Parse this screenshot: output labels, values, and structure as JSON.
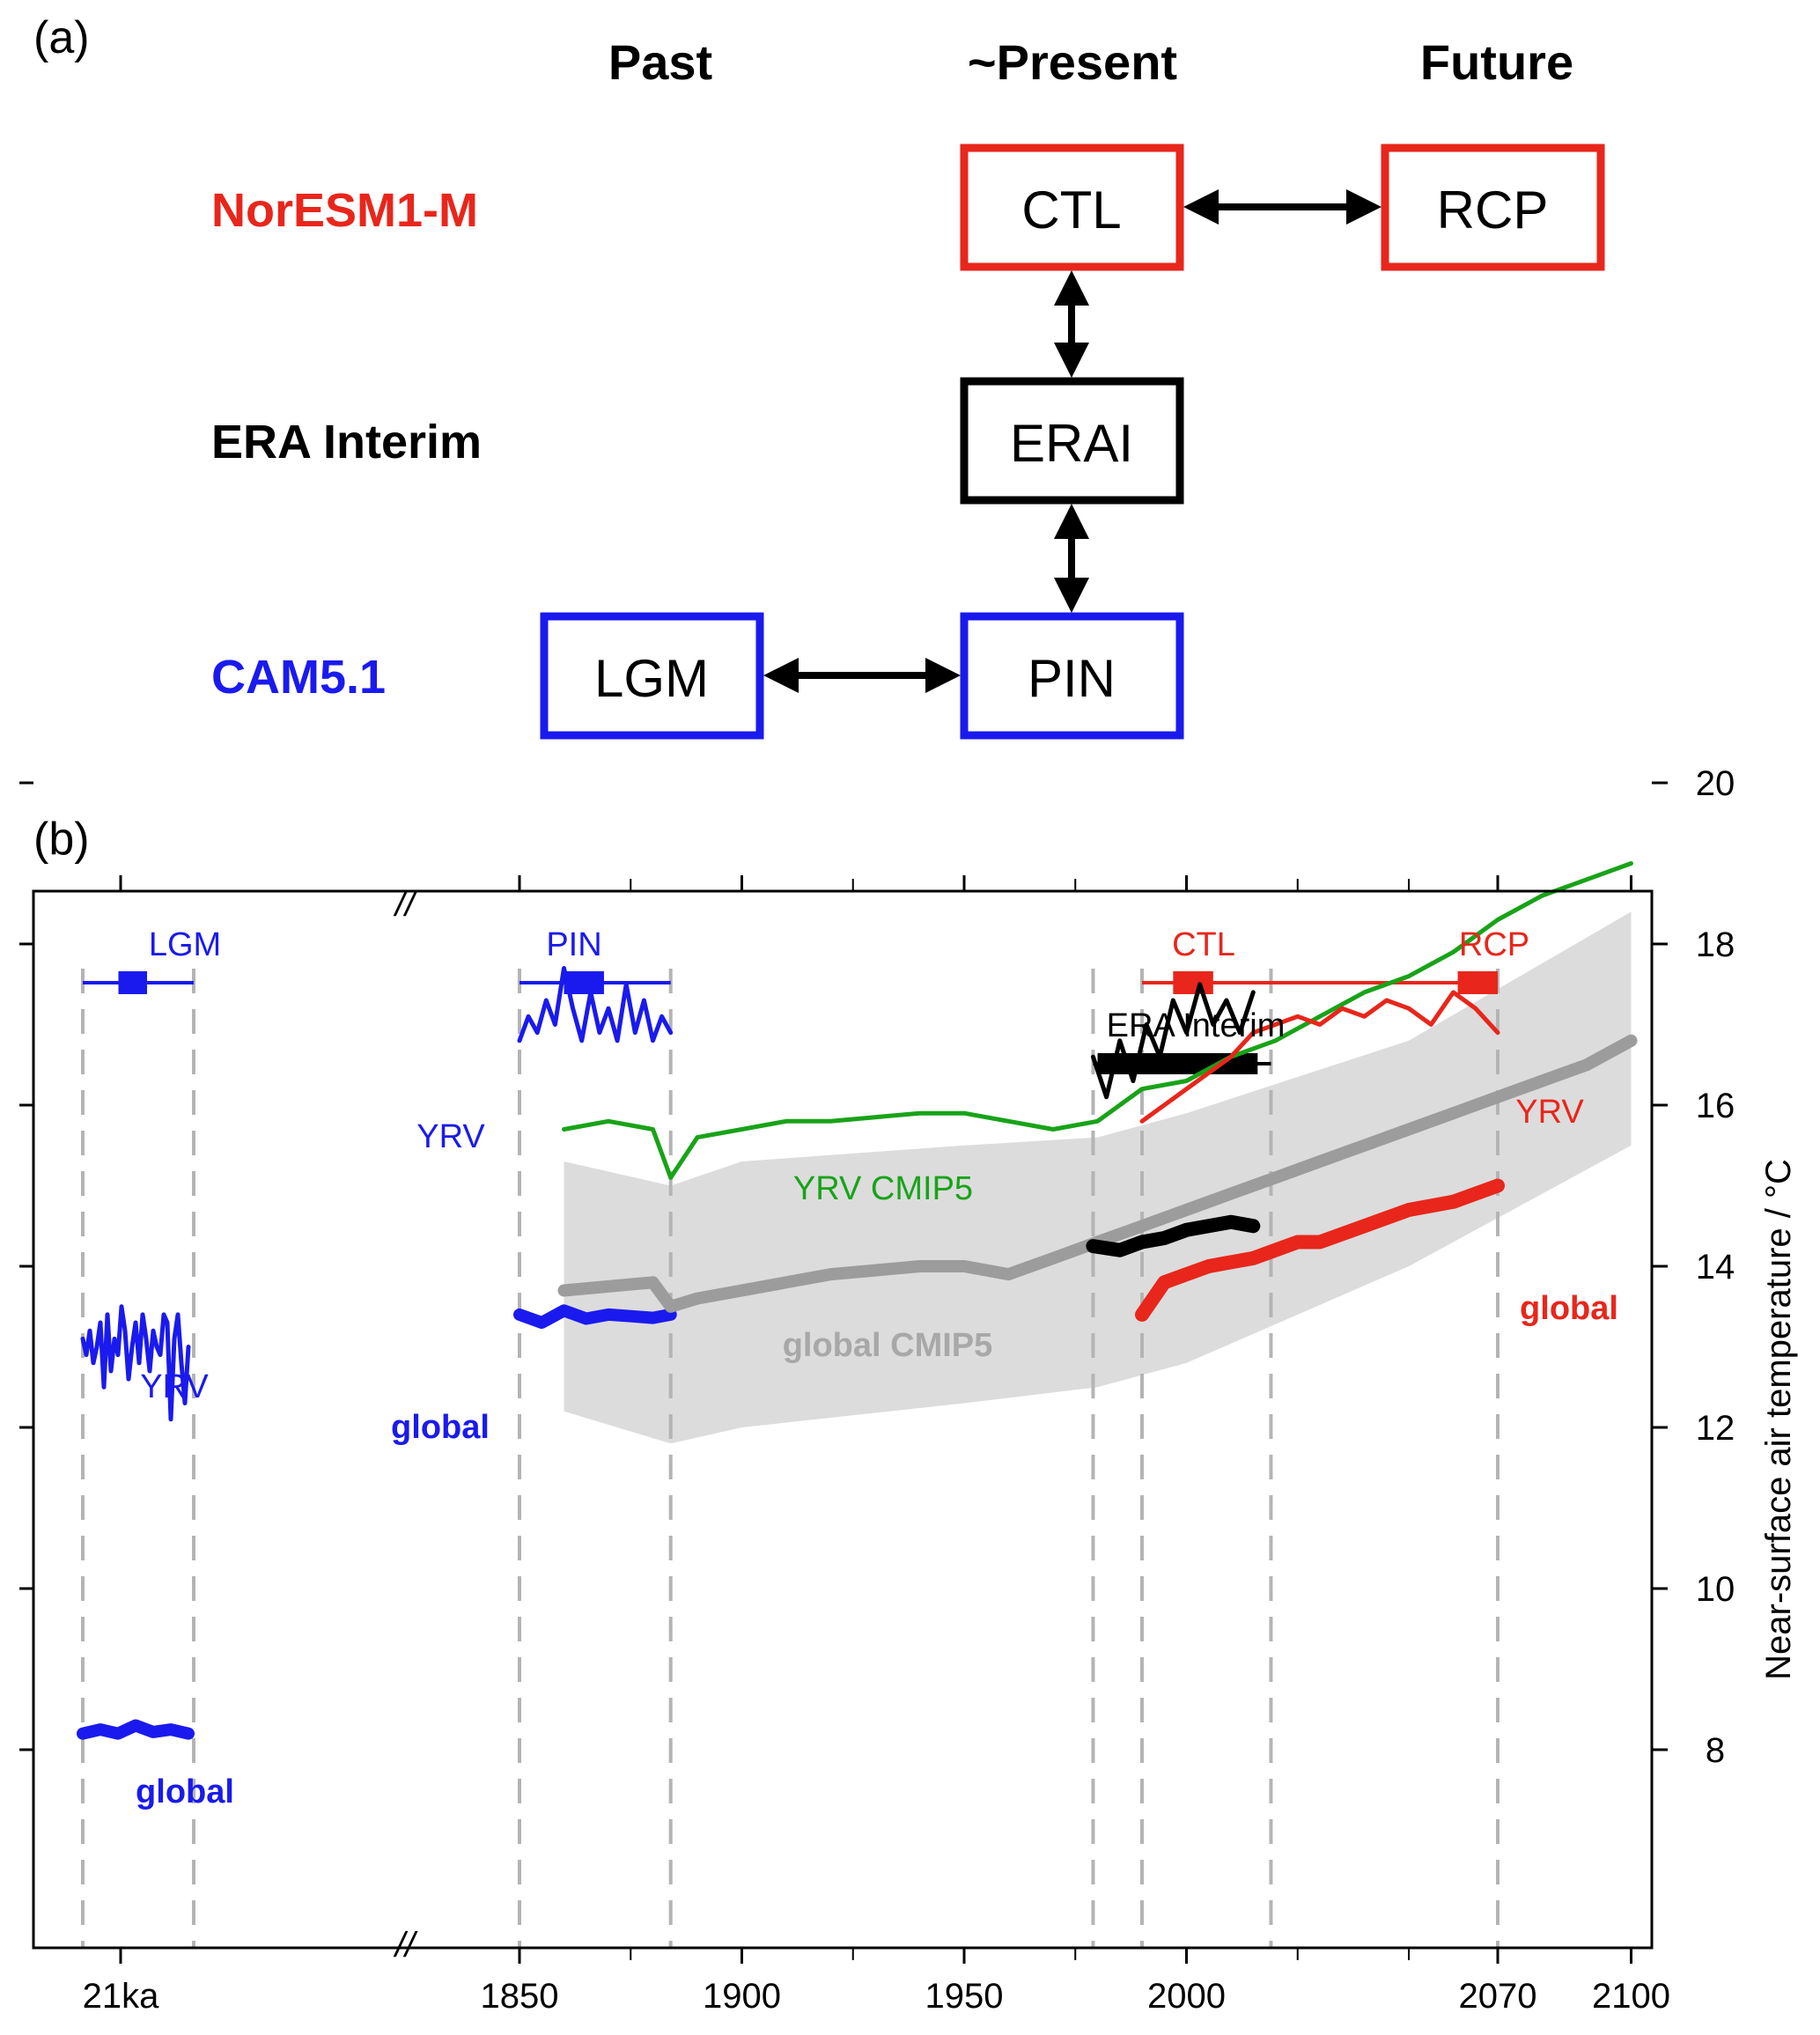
{
  "panel_a": {
    "label": "(a)",
    "columns": [
      "Past",
      "~Present",
      "Future"
    ],
    "rows": [
      {
        "label": "NorESM1-M",
        "color": "#e8261b"
      },
      {
        "label": "ERA Interim",
        "color": "#000000"
      },
      {
        "label": "CAM5.1",
        "color": "#1a1aee"
      }
    ],
    "boxes": [
      {
        "id": "CTL",
        "text": "CTL",
        "color": "#e8261b"
      },
      {
        "id": "RCP",
        "text": "RCP",
        "color": "#e8261b"
      },
      {
        "id": "ERAI",
        "text": "ERAI",
        "color": "#000000"
      },
      {
        "id": "LGM",
        "text": "LGM",
        "color": "#1a1aee"
      },
      {
        "id": "PIN",
        "text": "PIN",
        "color": "#1a1aee"
      }
    ],
    "arrows": [
      {
        "from": "CTL",
        "to": "RCP"
      },
      {
        "from": "CTL",
        "to": "ERAI"
      },
      {
        "from": "ERAI",
        "to": "PIN"
      },
      {
        "from": "LGM",
        "to": "PIN"
      }
    ]
  },
  "panel_b": {
    "label": "(b)",
    "break_mark": "//",
    "period_labels": [
      {
        "text": "LGM",
        "color": "#1a1aee"
      },
      {
        "text": "PIN",
        "color": "#1a1aee"
      },
      {
        "text": "CTL",
        "color": "#e8261b"
      },
      {
        "text": "RCP",
        "color": "#e8261b"
      },
      {
        "text": "ERA Interim",
        "color": "#000000"
      }
    ],
    "series_labels": {
      "lgm_yrv": "YRV",
      "lgm_global": "global",
      "pin_yrv": "YRV",
      "pin_global": "global",
      "yrv_cmip5": "YRV CMIP5",
      "global_cmip5": "global CMIP5",
      "noresm_yrv": "YRV",
      "noresm_global": "global"
    }
  },
  "colors": {
    "cam": "#1a1aee",
    "noresm": "#e8261b",
    "erai": "#000000",
    "yrv_cmip5": "#18a318",
    "global_cmip5": "#9c9c9c",
    "cmip5_range": "#dcdcdc",
    "dashed": "#b4b4b4"
  },
  "chart_data": {
    "type": "line",
    "ylabel": "Near-surface air temperature / °C",
    "ylim": [
      7,
      20
    ],
    "yticks": [
      8,
      10,
      12,
      14,
      16,
      18,
      20
    ],
    "xticks": [
      "21ka",
      "1850",
      "1900",
      "1950",
      "2000",
      "2070",
      "2100"
    ],
    "x_break": "between 21ka and 1850",
    "periods": {
      "LGM": {
        "years_shown": "21ka segment",
        "color": "cam"
      },
      "PIN": {
        "start": 1850,
        "end": 1884
      },
      "CTL": {
        "start": 1990,
        "end": 2070
      },
      "RCP": {
        "start": 1990,
        "end": 2070
      },
      "ERA Interim": {
        "start": 1979,
        "end": 2016
      }
    },
    "series": [
      {
        "name": "YRV",
        "model": "CAM5.1 LGM",
        "x": [
          0,
          1,
          2,
          3,
          4,
          5,
          6,
          7,
          8,
          9,
          10,
          11,
          12,
          13,
          14,
          15,
          16,
          17,
          18,
          19,
          20,
          21,
          22,
          23,
          24,
          25,
          26,
          27,
          28,
          29,
          30
        ],
        "values": [
          13.1,
          12.9,
          13.2,
          12.8,
          13.0,
          13.3,
          12.5,
          13.4,
          12.7,
          13.1,
          12.9,
          13.5,
          13.2,
          12.6,
          13.0,
          13.3,
          12.8,
          13.4,
          13.1,
          12.7,
          13.2,
          13.0,
          12.9,
          13.4,
          13.3,
          12.1,
          13.1,
          13.4,
          12.8,
          12.3,
          13.0
        ]
      },
      {
        "name": "global",
        "model": "CAM5.1 LGM",
        "x": [
          0,
          5,
          10,
          15,
          20,
          25,
          30
        ],
        "values": [
          8.2,
          8.25,
          8.2,
          8.3,
          8.22,
          8.25,
          8.2
        ]
      },
      {
        "name": "YRV",
        "model": "CAM5.1 PIN",
        "x": [
          1850,
          1852,
          1854,
          1856,
          1858,
          1860,
          1862,
          1864,
          1866,
          1868,
          1870,
          1872,
          1874,
          1876,
          1878,
          1880,
          1882,
          1884
        ],
        "values": [
          16.8,
          17.1,
          16.9,
          17.3,
          17.0,
          17.7,
          17.2,
          16.8,
          17.4,
          16.9,
          17.2,
          16.8,
          17.5,
          16.9,
          17.3,
          16.8,
          17.1,
          16.9
        ]
      },
      {
        "name": "global",
        "model": "CAM5.1 PIN",
        "x": [
          1850,
          1855,
          1860,
          1865,
          1870,
          1875,
          1880,
          1884
        ],
        "values": [
          13.4,
          13.3,
          13.45,
          13.35,
          13.4,
          13.38,
          13.36,
          13.4
        ]
      },
      {
        "name": "YRV CMIP5",
        "x": [
          1860,
          1870,
          1880,
          1884,
          1890,
          1900,
          1910,
          1920,
          1930,
          1940,
          1950,
          1960,
          1970,
          1980,
          1990,
          2000,
          2010,
          2020,
          2030,
          2040,
          2050,
          2060,
          2070,
          2080,
          2090,
          2100
        ],
        "values": [
          15.7,
          15.8,
          15.7,
          15.1,
          15.6,
          15.7,
          15.8,
          15.8,
          15.85,
          15.9,
          15.9,
          15.8,
          15.7,
          15.8,
          16.2,
          16.3,
          16.6,
          16.8,
          17.1,
          17.4,
          17.6,
          17.9,
          18.3,
          18.6,
          18.8,
          19.0
        ]
      },
      {
        "name": "global CMIP5",
        "x": [
          1860,
          1870,
          1880,
          1884,
          1890,
          1900,
          1910,
          1920,
          1930,
          1940,
          1950,
          1960,
          1970,
          1980,
          1990,
          2000,
          2010,
          2020,
          2030,
          2040,
          2050,
          2060,
          2070,
          2080,
          2090,
          2100
        ],
        "values": [
          13.7,
          13.75,
          13.8,
          13.5,
          13.6,
          13.7,
          13.8,
          13.9,
          13.95,
          14.0,
          14.0,
          13.9,
          14.1,
          14.3,
          14.5,
          14.7,
          14.9,
          15.1,
          15.3,
          15.5,
          15.7,
          15.9,
          16.1,
          16.3,
          16.5,
          16.8
        ]
      },
      {
        "name": "ERA Interim YRV",
        "x": [
          1979,
          1982,
          1985,
          1988,
          1991,
          1994,
          1997,
          2000,
          2003,
          2006,
          2009,
          2012,
          2015
        ],
        "values": [
          16.6,
          16.1,
          16.8,
          16.3,
          17.0,
          16.6,
          17.3,
          16.9,
          17.5,
          17.0,
          17.3,
          16.9,
          17.4
        ]
      },
      {
        "name": "ERA Interim global",
        "x": [
          1979,
          1985,
          1990,
          1995,
          2000,
          2005,
          2010,
          2015
        ],
        "values": [
          14.25,
          14.2,
          14.3,
          14.35,
          14.45,
          14.5,
          14.55,
          14.5
        ]
      },
      {
        "name": "YRV",
        "model": "NorESM1-M",
        "x": [
          1990,
          1995,
          2000,
          2005,
          2010,
          2015,
          2020,
          2025,
          2030,
          2035,
          2040,
          2045,
          2050,
          2055,
          2060,
          2065,
          2070
        ],
        "values": [
          15.8,
          16.0,
          16.2,
          16.4,
          16.6,
          16.9,
          17.0,
          17.1,
          17.0,
          17.2,
          17.1,
          17.3,
          17.2,
          17.0,
          17.4,
          17.2,
          16.9
        ]
      },
      {
        "name": "global",
        "model": "NorESM1-M",
        "x": [
          1990,
          1995,
          2000,
          2005,
          2010,
          2015,
          2020,
          2025,
          2030,
          2035,
          2040,
          2045,
          2050,
          2055,
          2060,
          2065,
          2070
        ],
        "values": [
          13.4,
          13.8,
          13.9,
          14.0,
          14.05,
          14.1,
          14.2,
          14.3,
          14.3,
          14.4,
          14.5,
          14.6,
          14.7,
          14.75,
          14.8,
          14.9,
          15.0
        ]
      }
    ],
    "cmip5_range": {
      "x": [
        1860,
        1884,
        1900,
        1950,
        1980,
        2000,
        2050,
        2100
      ],
      "upper": [
        15.3,
        15.0,
        15.3,
        15.5,
        15.6,
        15.9,
        16.8,
        18.4
      ],
      "lower": [
        12.2,
        11.8,
        12.0,
        12.3,
        12.5,
        12.8,
        14.0,
        15.5
      ]
    }
  }
}
